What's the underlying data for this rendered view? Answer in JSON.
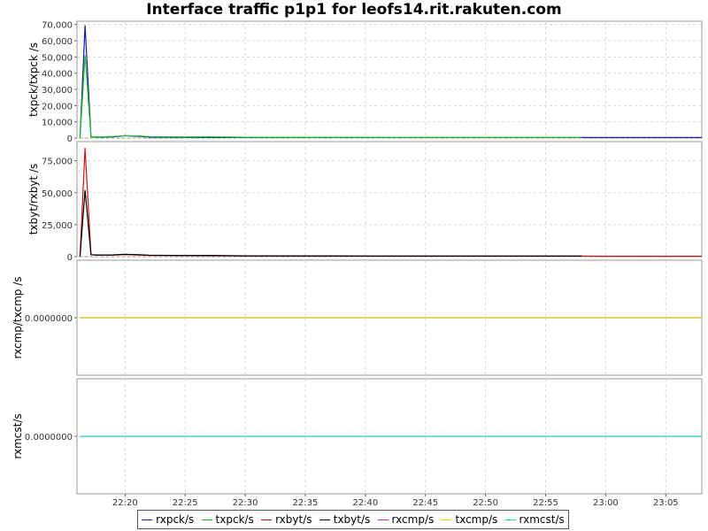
{
  "window": {
    "title": "Interface traffic p1p1 for leofs14.rit.rakuten.com"
  },
  "chart_data": [
    {
      "type": "line",
      "ylabel": "txpck/txpck /s",
      "ylim": [
        0,
        72000
      ],
      "y_ticks": [
        0,
        10000,
        20000,
        30000,
        40000,
        50000,
        60000,
        70000
      ],
      "y_tick_labels": [
        "0",
        "10,000",
        "20,000",
        "30,000",
        "40,000",
        "50,000",
        "60,000",
        "70,000"
      ],
      "grid": true,
      "series": [
        {
          "name": "rxpck/s",
          "color": "#1a1aa6",
          "x": [
            "22:16:15",
            "22:16:40",
            "22:17:10",
            "22:17:40",
            "22:19:00",
            "22:20:00",
            "22:21:00",
            "22:22:00",
            "22:25:00",
            "22:30:00",
            "22:35:00",
            "22:40:00",
            "22:45:00",
            "22:50:00",
            "22:55:00",
            "23:00:00",
            "23:05:00",
            "23:08:00"
          ],
          "values": [
            0,
            69500,
            800,
            600,
            700,
            1400,
            1100,
            600,
            500,
            400,
            500,
            400,
            300,
            300,
            300,
            300,
            300,
            300
          ]
        },
        {
          "name": "txpck/s",
          "color": "#22bb22",
          "x": [
            "22:16:15",
            "22:16:40",
            "22:17:10",
            "22:17:40",
            "22:19:00",
            "22:20:00",
            "22:21:00",
            "22:22:00",
            "22:25:00",
            "22:27:00",
            "22:30:00",
            "22:35:00",
            "22:40:00",
            "22:45:00",
            "22:50:00",
            "22:58:00"
          ],
          "values": [
            0,
            51000,
            900,
            700,
            1000,
            1500,
            1300,
            900,
            700,
            800,
            500,
            500,
            400,
            300,
            300,
            300
          ]
        }
      ]
    },
    {
      "type": "line",
      "ylabel": "txbyt/rxbyt /s",
      "ylim": [
        0,
        90000
      ],
      "y_ticks": [
        0,
        25000,
        50000,
        75000
      ],
      "y_tick_labels": [
        "0",
        "25,000",
        "50,000",
        "75,000"
      ],
      "grid": true,
      "series": [
        {
          "name": "rxbyt/s",
          "color": "#cc1111",
          "x": [
            "22:16:15",
            "22:16:40",
            "22:17:10",
            "22:17:40",
            "22:19:00",
            "22:20:00",
            "22:21:00",
            "22:22:00",
            "22:25:00",
            "22:30:00",
            "22:40:00",
            "22:50:00",
            "22:58:00",
            "23:00:00",
            "23:08:00"
          ],
          "values": [
            0,
            85000,
            1500,
            1200,
            1200,
            1600,
            1300,
            1000,
            800,
            600,
            500,
            400,
            400,
            300,
            300
          ]
        },
        {
          "name": "txbyt/s",
          "color": "#000000",
          "x": [
            "22:16:15",
            "22:16:40",
            "22:17:10",
            "22:17:40",
            "22:19:00",
            "22:20:00",
            "22:21:00",
            "22:22:00",
            "22:25:00",
            "22:27:00",
            "22:30:00",
            "22:40:00",
            "22:50:00",
            "22:58:00"
          ],
          "values": [
            0,
            52000,
            1500,
            1300,
            1400,
            1900,
            1600,
            1200,
            900,
            1000,
            600,
            500,
            400,
            400
          ]
        }
      ]
    },
    {
      "type": "line",
      "ylabel": "rxcmp/txcmp /s",
      "y_tick_labels": [
        "0.0000000"
      ],
      "grid": true,
      "series": [
        {
          "name": "rxcmp/s",
          "color": "#cc22cc",
          "x": [
            "22:16:15",
            "23:08:00"
          ],
          "values": [
            0,
            0
          ]
        },
        {
          "name": "txcmp/s",
          "color": "#dddd00",
          "x": [
            "22:16:15",
            "23:08:00"
          ],
          "values": [
            0,
            0
          ]
        }
      ]
    },
    {
      "type": "line",
      "ylabel": "rxmcst/s",
      "y_tick_labels": [
        "0.0000000"
      ],
      "grid": true,
      "series": [
        {
          "name": "rxmcst/s",
          "color": "#22cccc",
          "x": [
            "22:16:15",
            "23:08:00"
          ],
          "values": [
            0,
            0
          ]
        }
      ]
    }
  ],
  "x_axis": {
    "range": [
      "22:16:00",
      "23:08:00"
    ],
    "tick_labels": [
      "22:20",
      "22:25",
      "22:30",
      "22:35",
      "22:40",
      "22:45",
      "22:50",
      "22:55",
      "23:00",
      "23:05"
    ]
  },
  "legend": {
    "placement": "bottom",
    "items": [
      {
        "label": "rxpck/s",
        "color": "#1a1aa6"
      },
      {
        "label": "txpck/s",
        "color": "#22bb22"
      },
      {
        "label": "rxbyt/s",
        "color": "#cc1111"
      },
      {
        "label": "txbyt/s",
        "color": "#000000"
      },
      {
        "label": "rxcmp/s",
        "color": "#cc22cc"
      },
      {
        "label": "txcmp/s",
        "color": "#dddd00"
      },
      {
        "label": "rxmcst/s",
        "color": "#22cccc"
      }
    ]
  }
}
